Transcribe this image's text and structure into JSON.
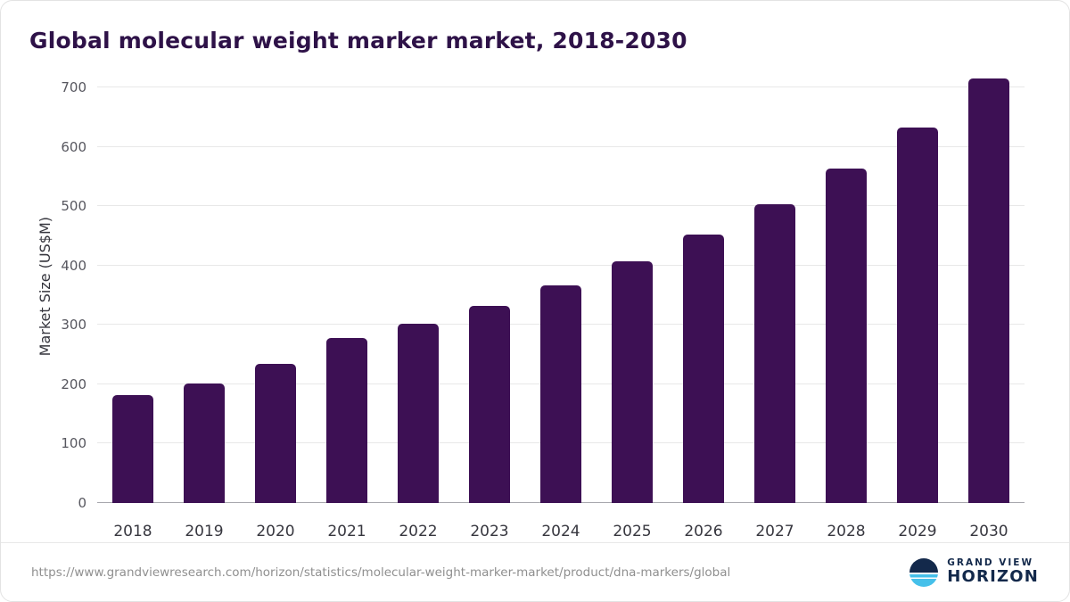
{
  "title": "Global molecular weight marker market, 2018-2030",
  "chart_data": {
    "type": "bar",
    "title": "Global molecular weight marker market, 2018-2030",
    "categories": [
      "2018",
      "2019",
      "2020",
      "2021",
      "2022",
      "2023",
      "2024",
      "2025",
      "2026",
      "2027",
      "2028",
      "2029",
      "2030"
    ],
    "values": [
      182,
      202,
      234,
      278,
      302,
      332,
      366,
      407,
      452,
      503,
      563,
      633,
      716
    ],
    "xlabel": "",
    "ylabel": "Market Size (US$M)",
    "ylim": [
      0,
      700
    ],
    "yticks": [
      0,
      100,
      200,
      300,
      400,
      500,
      600,
      700
    ],
    "grid": true,
    "legend": "none",
    "bar_color": "#3d1054"
  },
  "footer": {
    "source_url": "https://www.grandviewresearch.com/horizon/statistics/molecular-weight-marker-market/product/dna-markers/global",
    "logo": {
      "line1": "GRAND VIEW",
      "line2": "HORIZON"
    }
  }
}
